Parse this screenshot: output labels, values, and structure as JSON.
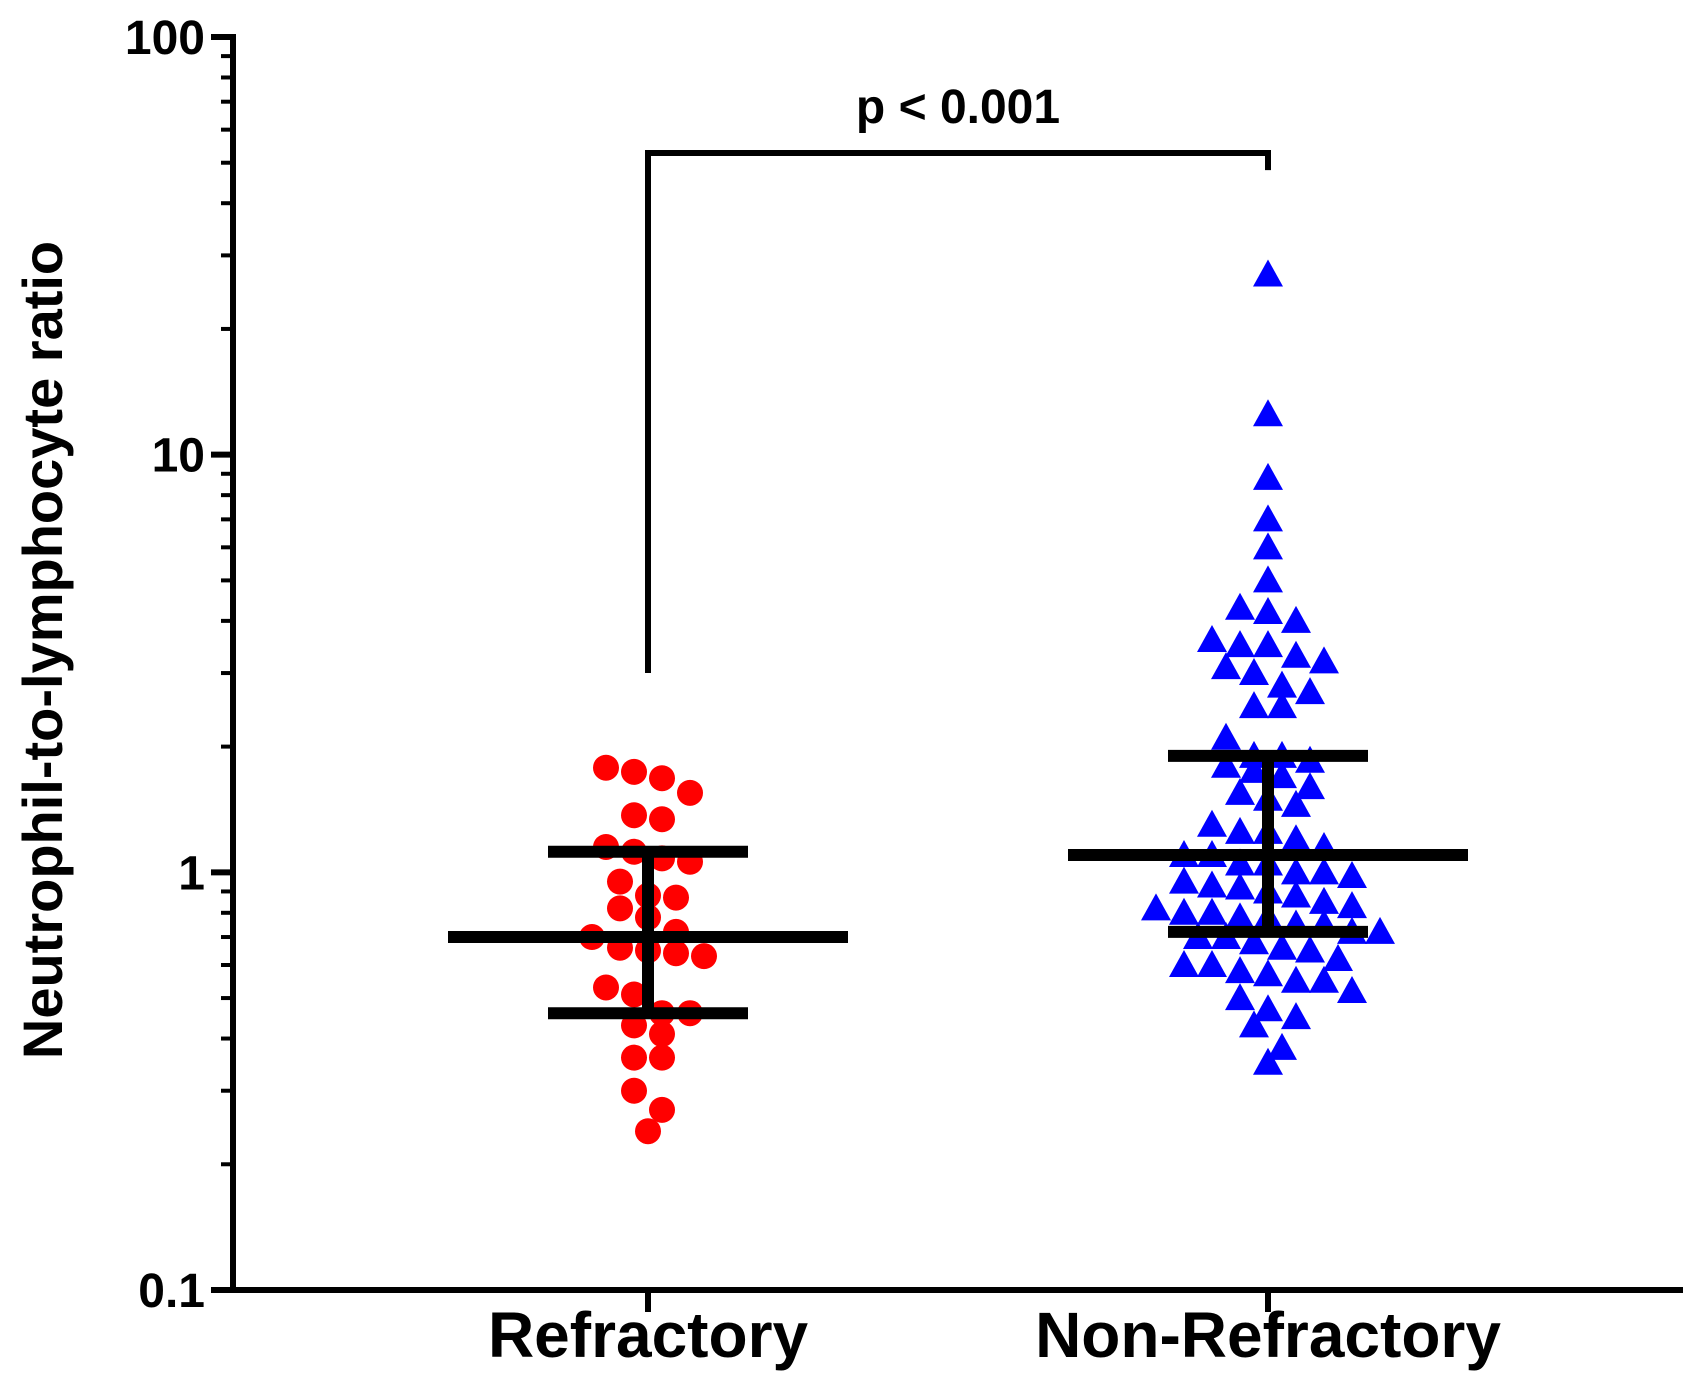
{
  "chart_data": {
    "type": "scatter",
    "title": "",
    "xlabel": "",
    "ylabel": "Neutrophil-to-lymphocyte ratio",
    "yscale": "log",
    "ylim": [
      0.1,
      100
    ],
    "yticks": [
      "0.1",
      "1",
      "10",
      "100"
    ],
    "grid": false,
    "categories": [
      "Refractory",
      "Non-Refractory"
    ],
    "annotation": "p < 0.001",
    "colors": {
      "Refractory": "#ff0000",
      "Non-Refractory": "#0000ff"
    },
    "markers": {
      "Refractory": "circle",
      "Non-Refractory": "triangle"
    },
    "series": [
      {
        "category": "Refractory",
        "summary": {
          "median": 0.7,
          "lower": 0.46,
          "upper": 1.12
        },
        "values": [
          1.78,
          1.68,
          1.74,
          1.55,
          1.34,
          1.37,
          1.08,
          1.12,
          1.15,
          1.06,
          0.88,
          0.95,
          0.87,
          0.82,
          0.78,
          0.72,
          0.7,
          0.65,
          0.63,
          0.64,
          0.66,
          0.53,
          0.51,
          0.46,
          0.46,
          0.43,
          0.41,
          0.36,
          0.36,
          0.3,
          0.27,
          0.24
        ]
      },
      {
        "category": "Non-Refractory",
        "summary": {
          "median": 1.1,
          "lower": 0.72,
          "upper": 1.9
        },
        "values": [
          27.0,
          12.5,
          8.8,
          7.0,
          6.0,
          5.0,
          4.3,
          4.0,
          4.2,
          3.6,
          3.5,
          3.5,
          3.3,
          3.2,
          3.0,
          3.1,
          2.8,
          2.7,
          2.5,
          2.5,
          2.1,
          1.9,
          1.9,
          1.85,
          1.8,
          1.75,
          1.7,
          1.6,
          1.55,
          1.5,
          1.45,
          1.3,
          1.25,
          1.25,
          1.2,
          1.15,
          1.1,
          1.1,
          1.05,
          1.05,
          1.0,
          1.0,
          0.98,
          0.95,
          0.93,
          0.92,
          0.9,
          0.88,
          0.85,
          0.83,
          0.82,
          0.8,
          0.8,
          0.78,
          0.78,
          0.75,
          0.75,
          0.72,
          0.72,
          0.7,
          0.7,
          0.68,
          0.66,
          0.65,
          0.62,
          0.6,
          0.6,
          0.58,
          0.57,
          0.55,
          0.55,
          0.52,
          0.5,
          0.47,
          0.45,
          0.43,
          0.38,
          0.35
        ]
      }
    ]
  }
}
